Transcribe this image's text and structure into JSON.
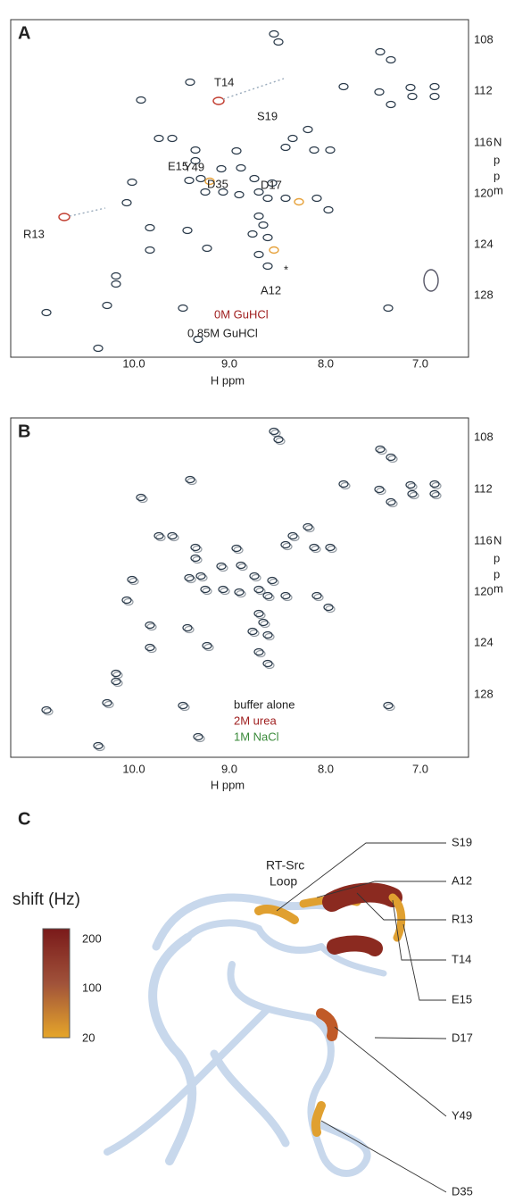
{
  "panels": [
    {
      "label": "A",
      "x_axis_label": "H ppm",
      "y_axis_label": [
        "N",
        "p",
        "p",
        "m"
      ],
      "x_ticks": [
        "10.0",
        "9.0",
        "8.0",
        "7.0"
      ],
      "y_ticks": [
        "108",
        "112",
        "116",
        "120",
        "124",
        "128"
      ],
      "peak_labels": [
        "T14",
        "S19",
        "E15",
        "Y49",
        "D35",
        "D17",
        "R13",
        "*",
        "A12"
      ],
      "legend": [
        "0M GuHCl",
        "0.85M GuHCl"
      ]
    },
    {
      "label": "B",
      "x_axis_label": "H ppm",
      "y_axis_label": [
        "N",
        "p",
        "p",
        "m"
      ],
      "x_ticks": [
        "10.0",
        "9.0",
        "8.0",
        "7.0"
      ],
      "y_ticks": [
        "108",
        "112",
        "116",
        "120",
        "124",
        "128"
      ],
      "legend": [
        "buffer alone",
        "2M urea",
        "1M NaCl"
      ]
    }
  ],
  "structure": {
    "label": "C",
    "loop_label": [
      "RT-Src",
      "Loop"
    ],
    "colorbar_title": "shift (Hz)",
    "colorbar_ticks": [
      "200",
      "100",
      "20"
    ],
    "residues": [
      "S19",
      "A12",
      "R13",
      "T14",
      "E15",
      "D17",
      "Y49",
      "D35"
    ]
  }
}
